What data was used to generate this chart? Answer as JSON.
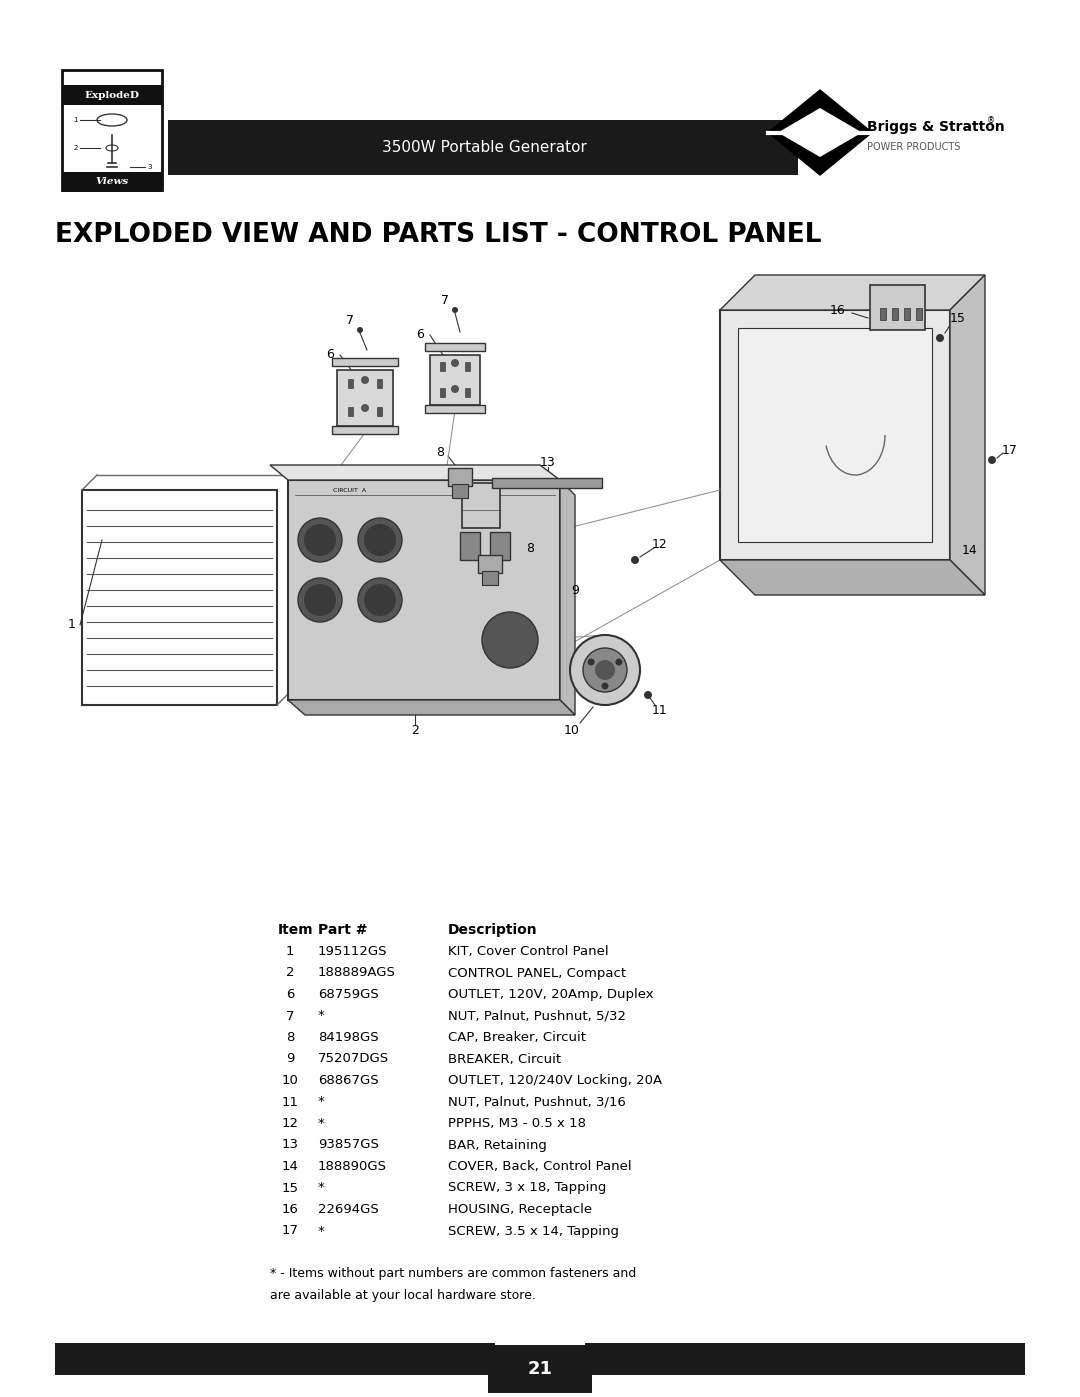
{
  "page_title": "3500W Portable Generator",
  "section_title": "EXPLODED VIEW AND PARTS LIST - CONTROL PANEL",
  "background_color": "#ffffff",
  "header_bar_color": "#1a1a1a",
  "header_text_color": "#ffffff",
  "header_text": "3500W Portable Generator",
  "footer_bar_color": "#1a1a1a",
  "footer_text_color": "#ffffff",
  "page_number": "21",
  "parts": [
    {
      "item": "1",
      "part": "195112GS",
      "description": "KIT, Cover Control Panel"
    },
    {
      "item": "2",
      "part": "188889AGS",
      "description": "CONTROL PANEL, Compact"
    },
    {
      "item": "6",
      "part": "68759GS",
      "description": "OUTLET, 120V, 20Amp, Duplex"
    },
    {
      "item": "7",
      "part": "*",
      "description": "NUT, Palnut, Pushnut, 5/32"
    },
    {
      "item": "8",
      "part": "84198GS",
      "description": "CAP, Breaker, Circuit"
    },
    {
      "item": "9",
      "part": "75207DGS",
      "description": "BREAKER, Circuit"
    },
    {
      "item": "10",
      "part": "68867GS",
      "description": "OUTLET, 120/240V Locking, 20A"
    },
    {
      "item": "11",
      "part": "*",
      "description": "NUT, Palnut, Pushnut, 3/16"
    },
    {
      "item": "12",
      "part": "*",
      "description": "PPPHS, M3 - 0.5 x 18"
    },
    {
      "item": "13",
      "part": "93857GS",
      "description": "BAR, Retaining"
    },
    {
      "item": "14",
      "part": "188890GS",
      "description": "COVER, Back, Control Panel"
    },
    {
      "item": "15",
      "part": "*",
      "description": "SCREW, 3 x 18, Tapping"
    },
    {
      "item": "16",
      "part": "22694GS",
      "description": "HOUSING, Receptacle"
    },
    {
      "item": "17",
      "part": "*",
      "description": "SCREW, 3.5 x 14, Tapping"
    }
  ],
  "footnote": "* - Items without part numbers are common fasteners and\nare available at your local hardware store.",
  "diagram_color": "#333333",
  "diagram_light": "#e0e0e0",
  "diagram_mid": "#b8b8b8"
}
